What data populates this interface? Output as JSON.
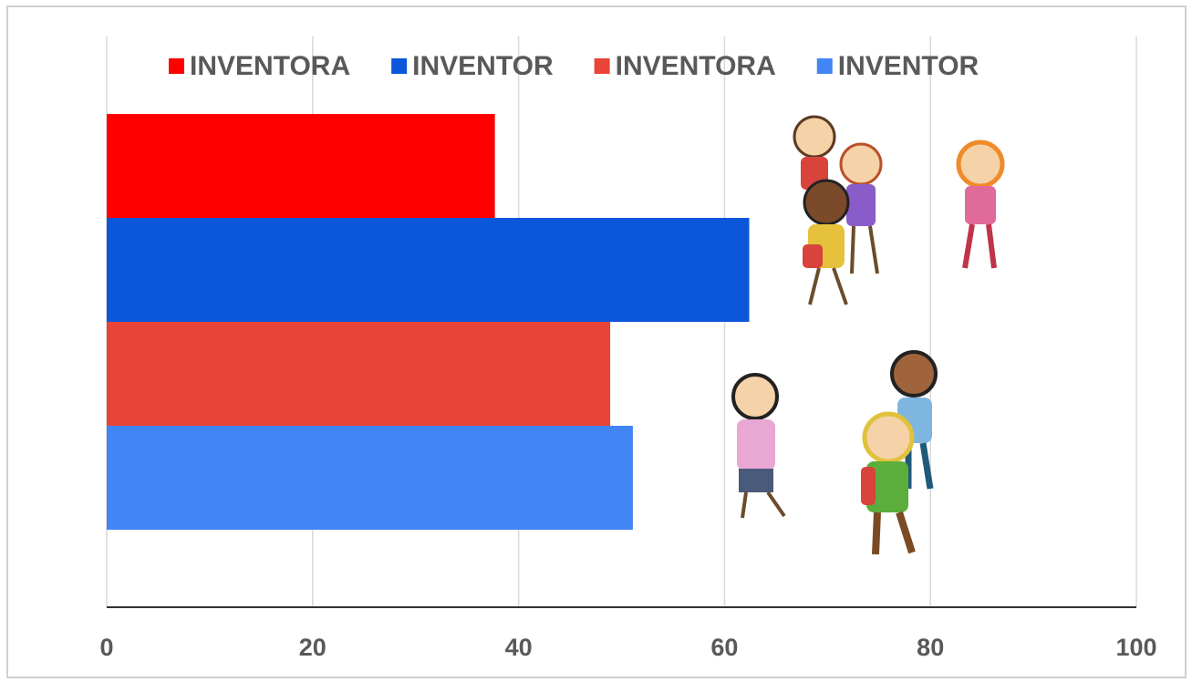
{
  "chart_data": {
    "type": "bar",
    "orientation": "horizontal",
    "categories": [
      null
    ],
    "series": [
      {
        "name": "INVENTORA",
        "color": "#ff0000",
        "values": [
          37.7
        ]
      },
      {
        "name": "INVENTOR",
        "color": "#0b56d9",
        "values": [
          62.4
        ]
      },
      {
        "name": "INVENTORA",
        "color": "#e84438",
        "values": [
          48.9
        ]
      },
      {
        "name": "INVENTOR",
        "color": "#4285f4",
        "values": [
          51.1
        ]
      }
    ],
    "xlim": [
      0,
      100
    ],
    "xticks": [
      0,
      20,
      40,
      60,
      80,
      100
    ],
    "grid": true,
    "legend": "top"
  }
}
